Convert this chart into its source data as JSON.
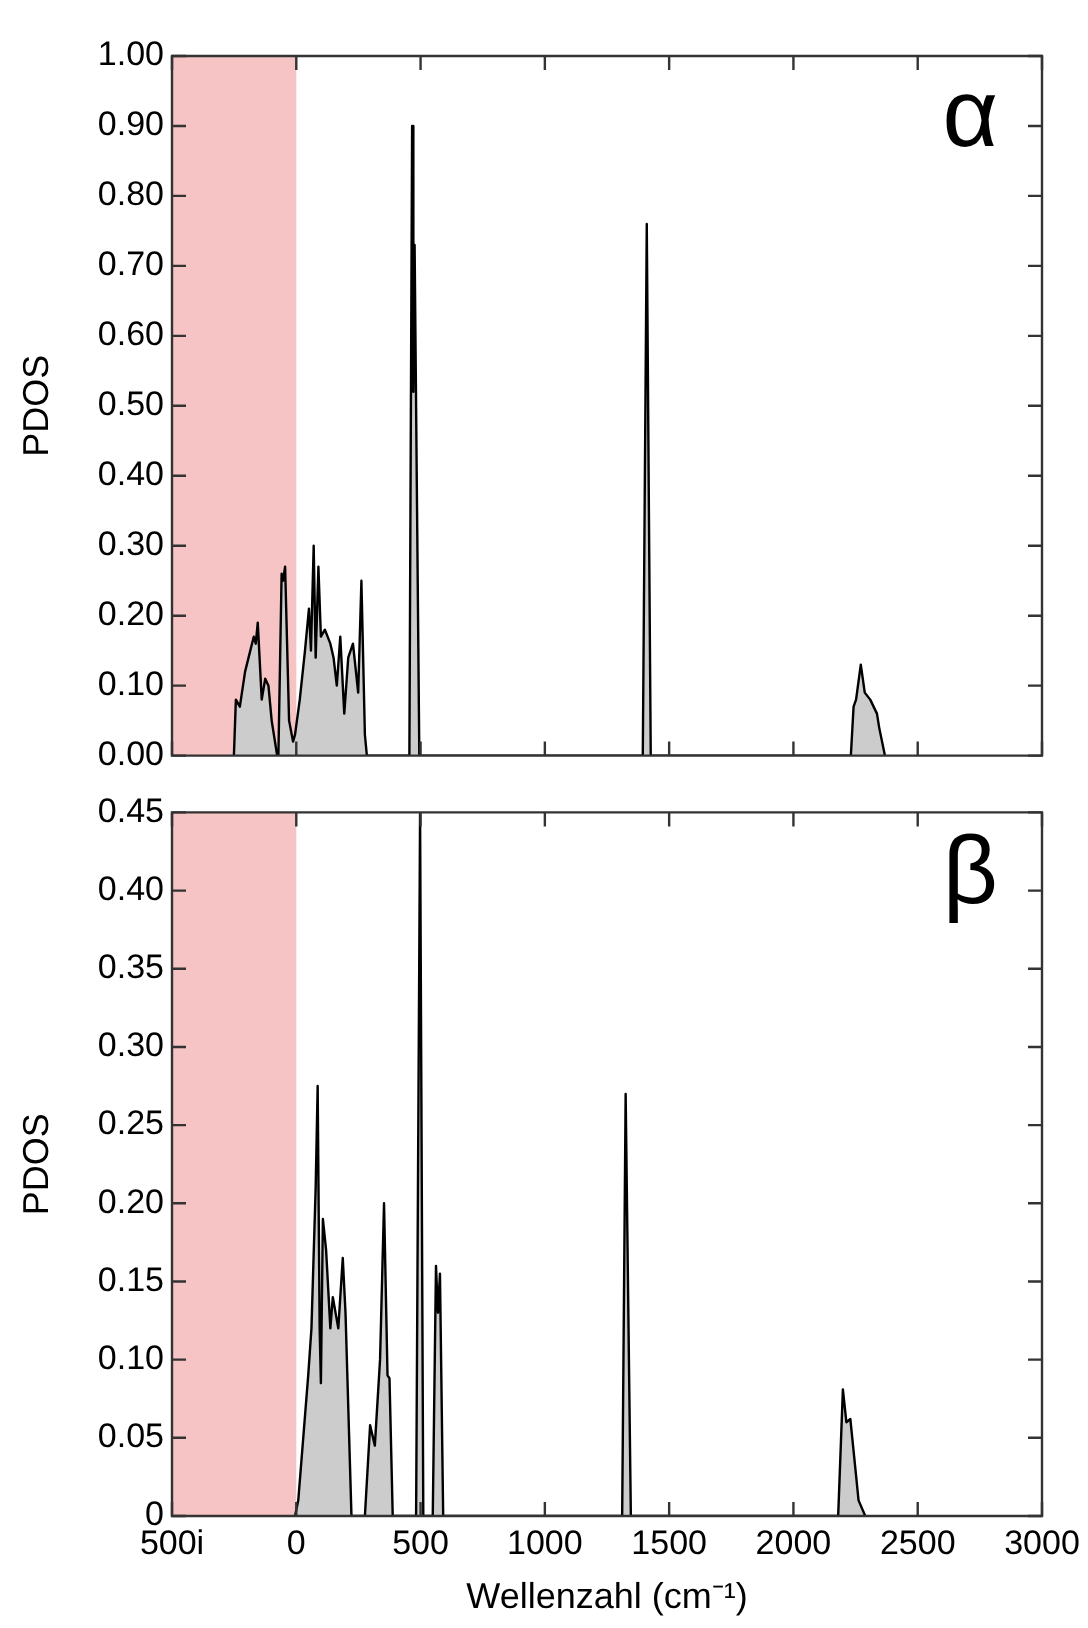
{
  "chart_data": [
    {
      "type": "area",
      "ylabel": "PDOS",
      "annotations": [
        "α"
      ],
      "tick_labels": "y",
      "grid": false,
      "xlim": [
        -500,
        3000
      ],
      "xticks": [
        -500,
        0,
        500,
        1000,
        1500,
        2000,
        2500,
        3000
      ],
      "ylim": [
        0,
        1
      ],
      "yticks": [
        {
          "value": 0,
          "label": "0.00"
        },
        {
          "value": 0.1,
          "label": "0.10"
        },
        {
          "value": 0.2,
          "label": "0.20"
        },
        {
          "value": 0.3,
          "label": "0.30"
        },
        {
          "value": 0.4,
          "label": "0.40"
        },
        {
          "value": 0.5,
          "label": "0.50"
        },
        {
          "value": 0.6,
          "label": "0.60"
        },
        {
          "value": 0.7,
          "label": "0.70"
        },
        {
          "value": 0.8,
          "label": "0.80"
        },
        {
          "value": 0.9,
          "label": "0.90"
        },
        {
          "value": 1,
          "label": "1.00"
        }
      ],
      "bands": [
        {
          "axis": "x",
          "from": -500,
          "to": 0,
          "color": "#f6c4c4"
        }
      ],
      "series": [
        {
          "color": "#cccccc",
          "x": [
            -251,
            -243,
            -227,
            -206,
            -185,
            -171,
            -163,
            -155,
            -139,
            -125,
            -112,
            -99,
            -77,
            -72,
            -59,
            -53,
            -45,
            -29,
            -13,
            -5,
            14,
            35,
            51,
            59,
            70,
            78,
            89,
            99,
            115,
            137,
            150,
            163,
            177,
            193,
            209,
            228,
            249,
            262,
            276,
            284,
            455,
            466,
            471,
            476,
            495,
            1394,
            1410,
            1426,
            2231,
            2242,
            2252,
            2271,
            2287,
            2309,
            2336,
            2345,
            2368
          ],
          "values": [
            0,
            0.08,
            0.07,
            0.12,
            0.15,
            0.17,
            0.16,
            0.19,
            0.08,
            0.11,
            0.1,
            0.05,
            0,
            0,
            0.26,
            0.25,
            0.27,
            0.05,
            0.02,
            0.03,
            0.08,
            0.15,
            0.21,
            0.15,
            0.3,
            0.14,
            0.27,
            0.17,
            0.18,
            0.16,
            0.14,
            0.1,
            0.17,
            0.06,
            0.14,
            0.16,
            0.09,
            0.25,
            0.03,
            0,
            0,
            0.9,
            0.52,
            0.73,
            0,
            0,
            0.76,
            0,
            0,
            0.07,
            0.08,
            0.13,
            0.09,
            0.08,
            0.06,
            0.04,
            0
          ]
        }
      ]
    },
    {
      "type": "area",
      "ylabel": "PDOS",
      "xlabel": "Wellenzahl (cm⁻¹)",
      "annotations": [
        "β"
      ],
      "grid": false,
      "xlim": [
        -500,
        3000
      ],
      "xticks": [
        {
          "value": -500,
          "label": "500i"
        },
        0,
        500,
        1000,
        1500,
        2000,
        2500,
        3000
      ],
      "ylim": [
        0,
        0.45
      ],
      "yticks": [
        0,
        0.05,
        {
          "value": 0.1,
          "label": "0.10"
        },
        0.15,
        {
          "value": 0.2,
          "label": "0.20"
        },
        0.25,
        {
          "value": 0.3,
          "label": "0.30"
        },
        0.35,
        {
          "value": 0.4,
          "label": "0.40"
        },
        0.45
      ],
      "bands": [
        {
          "axis": "x",
          "from": -500,
          "to": 0,
          "color": "#f6c4c4"
        }
      ],
      "series": [
        {
          "color": "#cccccc",
          "x": [
            -5,
            8,
            48,
            61,
            78,
            86,
            94,
            99,
            107,
            120,
            137,
            147,
            169,
            187,
            198,
            222,
            276,
            297,
            316,
            337,
            353,
            367,
            375,
            388,
            482,
            498,
            511,
            549,
            562,
            570,
            578,
            591,
            1311,
            1325,
            1346,
            2180,
            2199,
            2213,
            2229,
            2243,
            2262,
            2289
          ],
          "values": [
            0,
            0.01,
            0.09,
            0.12,
            0.21,
            0.275,
            0.12,
            0.085,
            0.19,
            0.17,
            0.12,
            0.14,
            0.12,
            0.165,
            0.13,
            0,
            0,
            0.058,
            0.045,
            0.1,
            0.2,
            0.09,
            0.088,
            0,
            0,
            0.45,
            0,
            0,
            0.16,
            0.13,
            0.155,
            0,
            0,
            0.27,
            0,
            0,
            0.081,
            0.06,
            0.062,
            0.04,
            0.01,
            0
          ]
        }
      ]
    }
  ]
}
